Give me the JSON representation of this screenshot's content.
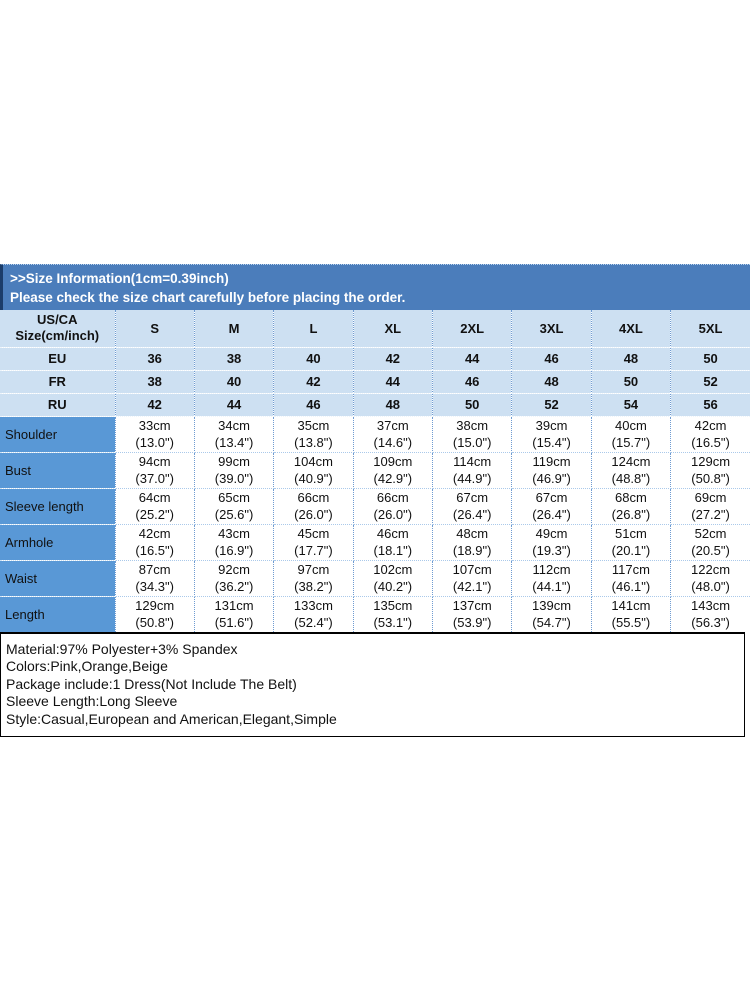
{
  "banner": {
    "title": ">>Size Information(1cm=0.39inch)",
    "subtitle": "Please check the size chart carefully before placing the order."
  },
  "size_table": {
    "corner_header_line1": "US/CA",
    "corner_header_line2": "Size(cm/inch)",
    "size_columns": [
      "S",
      "M",
      "L",
      "XL",
      "2XL",
      "3XL",
      "4XL",
      "5XL"
    ],
    "region_rows": [
      {
        "label": "EU",
        "values": [
          "36",
          "38",
          "40",
          "42",
          "44",
          "46",
          "48",
          "50"
        ]
      },
      {
        "label": "FR",
        "values": [
          "38",
          "40",
          "42",
          "44",
          "46",
          "48",
          "50",
          "52"
        ]
      },
      {
        "label": "RU",
        "values": [
          "42",
          "44",
          "46",
          "48",
          "50",
          "52",
          "54",
          "56"
        ]
      }
    ],
    "measurement_rows": [
      {
        "label": "Shoulder",
        "cm": [
          "33cm",
          "34cm",
          "35cm",
          "37cm",
          "38cm",
          "39cm",
          "40cm",
          "42cm"
        ],
        "inch": [
          "(13.0\")",
          "(13.4\")",
          "(13.8\")",
          "(14.6\")",
          "(15.0\")",
          "(15.4\")",
          "(15.7\")",
          "(16.5\")"
        ]
      },
      {
        "label": "Bust",
        "cm": [
          "94cm",
          "99cm",
          "104cm",
          "109cm",
          "114cm",
          "119cm",
          "124cm",
          "129cm"
        ],
        "inch": [
          "(37.0\")",
          "(39.0\")",
          "(40.9\")",
          "(42.9\")",
          "(44.9\")",
          "(46.9\")",
          "(48.8\")",
          "(50.8\")"
        ]
      },
      {
        "label": "Sleeve length",
        "cm": [
          "64cm",
          "65cm",
          "66cm",
          "66cm",
          "67cm",
          "67cm",
          "68cm",
          "69cm"
        ],
        "inch": [
          "(25.2\")",
          "(25.6\")",
          "(26.0\")",
          "(26.0\")",
          "(26.4\")",
          "(26.4\")",
          "(26.8\")",
          "(27.2\")"
        ]
      },
      {
        "label": "Armhole",
        "cm": [
          "42cm",
          "43cm",
          "45cm",
          "46cm",
          "48cm",
          "49cm",
          "51cm",
          "52cm"
        ],
        "inch": [
          "(16.5\")",
          "(16.9\")",
          "(17.7\")",
          "(18.1\")",
          "(18.9\")",
          "(19.3\")",
          "(20.1\")",
          "(20.5\")"
        ]
      },
      {
        "label": "Waist",
        "cm": [
          "87cm",
          "92cm",
          "97cm",
          "102cm",
          "107cm",
          "112cm",
          "117cm",
          "122cm"
        ],
        "inch": [
          "(34.3\")",
          "(36.2\")",
          "(38.2\")",
          "(40.2\")",
          "(42.1\")",
          "(44.1\")",
          "(46.1\")",
          "(48.0\")"
        ]
      },
      {
        "label": "Length",
        "cm": [
          "129cm",
          "131cm",
          "133cm",
          "135cm",
          "137cm",
          "139cm",
          "141cm",
          "143cm"
        ],
        "inch": [
          "(50.8\")",
          "(51.6\")",
          "(52.4\")",
          "(53.1\")",
          "(53.9\")",
          "(54.7\")",
          "(55.5\")",
          "(56.3\")"
        ]
      }
    ]
  },
  "product_info": {
    "lines": [
      "Material:97% Polyester+3% Spandex",
      "Colors:Pink,Orange,Beige",
      "Package include:1 Dress(Not Include The Belt)",
      "Sleeve Length:Long Sleeve",
      "Style:Casual,European and American,Elegant,Simple"
    ]
  },
  "colors": {
    "banner_bg": "#4b7dbb",
    "banner_text": "#ffffff",
    "header_bg": "#cde0f2",
    "label_bg": "#5998d6",
    "info_border": "#000000",
    "text": "#111111"
  }
}
